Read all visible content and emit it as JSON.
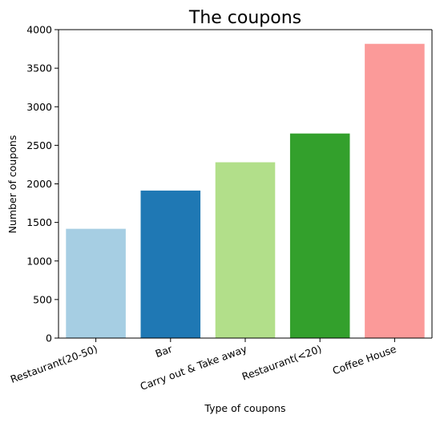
{
  "chart_data": {
    "type": "bar",
    "title": "The coupons",
    "xlabel": "Type of coupons",
    "ylabel": "Number of coupons",
    "categories": [
      "Restaurant(20-50)",
      "Bar",
      "Carry out & Take away",
      "Restaurant(<20)",
      "Coffee House"
    ],
    "values": [
      1417,
      1913,
      2280,
      2653,
      3816
    ],
    "colors": [
      "#a6cee3",
      "#1f78b4",
      "#b2df8a",
      "#33a02c",
      "#fb9a99"
    ],
    "ylim": [
      0,
      4000
    ],
    "yticks": [
      0,
      500,
      1000,
      1500,
      2000,
      2500,
      3000,
      3500,
      4000
    ],
    "grid": false,
    "x_tick_rotation_deg": -20
  }
}
